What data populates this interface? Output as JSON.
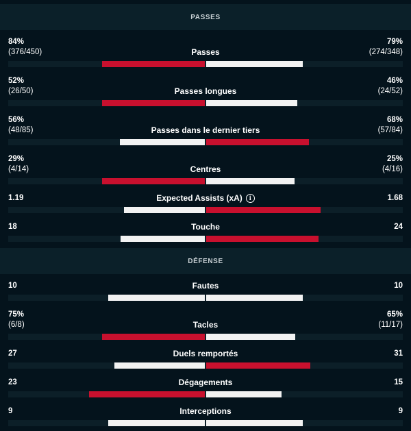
{
  "sections": [
    {
      "title": "PASSES",
      "stats": [
        {
          "label": "Passes",
          "left_pct": "84%",
          "left_sub": "(376/450)",
          "right_pct": "79%",
          "right_sub": "(274/348)",
          "left_value": 0.84,
          "right_value": 0.79,
          "leader": "left"
        },
        {
          "label": "Passes longues",
          "left_pct": "52%",
          "left_sub": "(26/50)",
          "right_pct": "46%",
          "right_sub": "(24/52)",
          "left_value": 0.52,
          "right_value": 0.46,
          "leader": "left"
        },
        {
          "label": "Passes dans le dernier tiers",
          "left_pct": "56%",
          "left_sub": "(48/85)",
          "right_pct": "68%",
          "right_sub": "(57/84)",
          "left_value": 0.56,
          "right_value": 0.68,
          "leader": "right"
        },
        {
          "label": "Centres",
          "left_pct": "29%",
          "left_sub": "(4/14)",
          "right_pct": "25%",
          "right_sub": "(4/16)",
          "left_value": 0.29,
          "right_value": 0.25,
          "leader": "left"
        },
        {
          "label": "Expected Assists (xA)",
          "left_pct": "1.19",
          "left_sub": "",
          "right_pct": "1.68",
          "right_sub": "",
          "left_value": 1.19,
          "right_value": 1.68,
          "leader": "right",
          "info": "info-icon"
        },
        {
          "label": "Touche",
          "left_pct": "18",
          "left_sub": "",
          "right_pct": "24",
          "right_sub": "",
          "left_value": 18,
          "right_value": 24,
          "leader": "right"
        }
      ]
    },
    {
      "title": "DÉFENSE",
      "stats": [
        {
          "label": "Fautes",
          "left_pct": "10",
          "left_sub": "",
          "right_pct": "10",
          "right_sub": "",
          "left_value": 10,
          "right_value": 10,
          "leader": "none"
        },
        {
          "label": "Tacles",
          "left_pct": "75%",
          "left_sub": "(6/8)",
          "right_pct": "65%",
          "right_sub": "(11/17)",
          "left_value": 0.75,
          "right_value": 0.65,
          "leader": "left"
        },
        {
          "label": "Duels remportés",
          "left_pct": "27",
          "left_sub": "",
          "right_pct": "31",
          "right_sub": "",
          "left_value": 27,
          "right_value": 31,
          "leader": "right"
        },
        {
          "label": "Dégagements",
          "left_pct": "23",
          "left_sub": "",
          "right_pct": "15",
          "right_sub": "",
          "left_value": 23,
          "right_value": 15,
          "leader": "left"
        },
        {
          "label": "Interceptions",
          "left_pct": "9",
          "left_sub": "",
          "right_pct": "9",
          "right_sub": "",
          "left_value": 9,
          "right_value": 9,
          "leader": "none"
        }
      ]
    }
  ],
  "colors": {
    "leader": "#c8102e",
    "other": "#f2f2f2",
    "background": "#04131c",
    "header_bg": "#0b2029"
  }
}
